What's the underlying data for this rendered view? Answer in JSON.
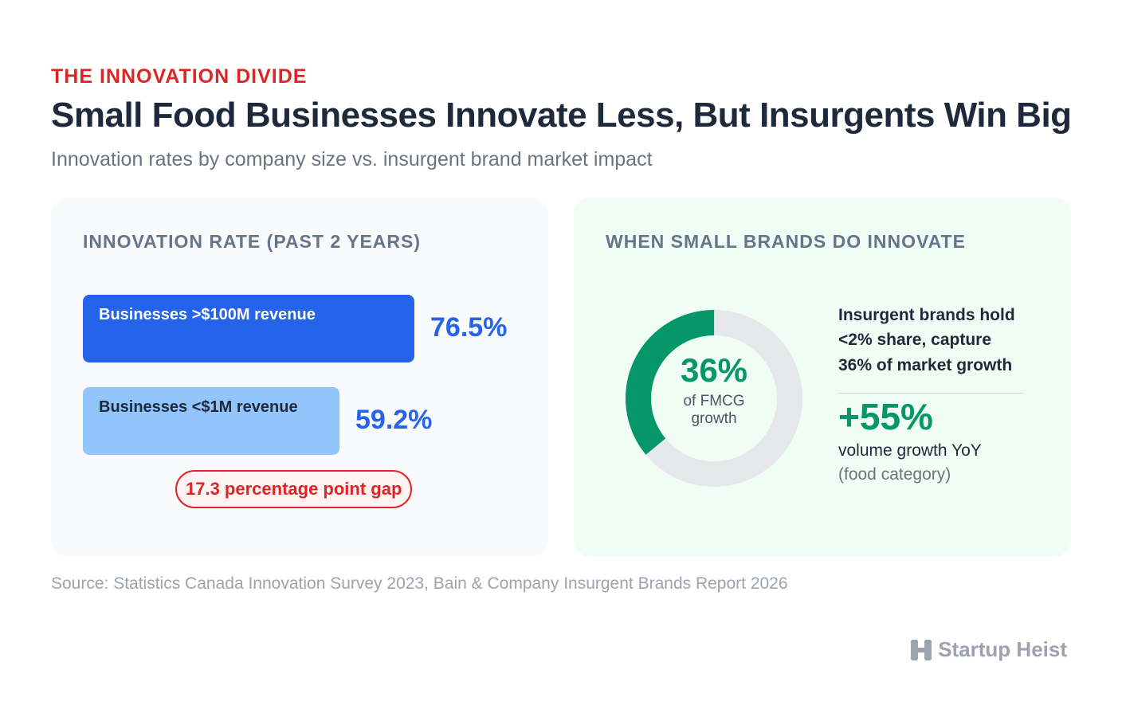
{
  "header": {
    "eyebrow": "THE INNOVATION DIVIDE",
    "title": "Small Food Businesses Innovate Less, But Insurgents Win Big",
    "subtitle": "Innovation rates by company size vs. insurgent brand market impact"
  },
  "left_panel": {
    "heading": "INNOVATION RATE (PAST 2 YEARS)",
    "gap_label": "17.3 percentage point gap"
  },
  "right_panel": {
    "heading": "WHEN SMALL BRANDS DO INNOVATE",
    "donut_value": "36%",
    "donut_caption_line1": "of FMCG",
    "donut_caption_line2": "growth",
    "stat_lines": [
      "Insurgent brands hold",
      "<2% share, capture",
      "36% of market growth"
    ],
    "big_stat": "+55%",
    "big_stat_label": "volume growth YoY",
    "big_stat_sub": "(food category)"
  },
  "chart_data": [
    {
      "type": "bar",
      "orientation": "horizontal",
      "categories": [
        "Businesses >$100M revenue",
        "Businesses <$1M revenue"
      ],
      "values": [
        76.5,
        59.2
      ],
      "value_labels": [
        "76.5%",
        "59.2%"
      ],
      "unit": "%",
      "colors": [
        "#2563eb",
        "#93c5fd"
      ],
      "label_colors": [
        "#ffffff",
        "#1e293b"
      ]
    },
    {
      "type": "pie",
      "style": "donut",
      "values": [
        36,
        64
      ],
      "colors": [
        "#059669",
        "#e5e7eb"
      ]
    }
  ],
  "footer": {
    "source": "Source: Statistics Canada Innovation Survey 2023, Bain & Company Insurgent Brands Report 2026",
    "brand": "Startup Heist",
    "brand_icon": "h-logo-icon"
  },
  "colors": {
    "accent_red": "#dc2626",
    "primary_blue": "#2563eb",
    "light_blue": "#93c5fd",
    "green": "#059669"
  }
}
